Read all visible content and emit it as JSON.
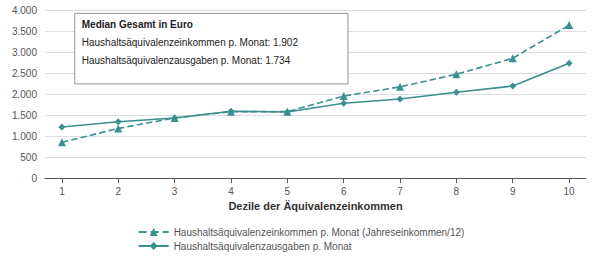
{
  "chart_data": {
    "type": "line",
    "xlabel": "Dezile der Äquivalenzeinkommen",
    "x": [
      1,
      2,
      3,
      4,
      5,
      6,
      7,
      8,
      9,
      10
    ],
    "xlim": [
      0.7,
      10.3
    ],
    "xticks": [
      1,
      2,
      3,
      4,
      5,
      6,
      7,
      8,
      9,
      10
    ],
    "ylim": [
      0,
      4000
    ],
    "yticks": [
      0,
      500,
      {
        "value": 1000,
        "label": "1.000"
      },
      {
        "value": 1500,
        "label": "1.500"
      },
      {
        "value": 2000,
        "label": "2.000"
      },
      {
        "value": 2500,
        "label": "2.500"
      },
      {
        "value": 3000,
        "label": "3.000"
      },
      {
        "value": 3500,
        "label": "3.500"
      },
      {
        "value": 4000,
        "label": "4.000"
      }
    ],
    "grid": true,
    "legend": "bottom",
    "series": [
      {
        "name": "Haushaltsäquivalenzeinkommen p. Monat (Jahreseinkommen/12)",
        "color": "#3a8f8f",
        "marker": "triangle",
        "line_style": "dashed",
        "values": [
          850,
          1180,
          1430,
          1580,
          1580,
          1950,
          2170,
          2470,
          2850,
          3640
        ]
      },
      {
        "name": "Haushaltsäquivalenzausgaben p. Monat",
        "color": "#3a8f8f",
        "marker": "diamond",
        "line_style": "solid",
        "values": [
          1215,
          1340,
          1430,
          1590,
          1570,
          1780,
          1880,
          2040,
          2190,
          2730
        ]
      }
    ],
    "annotations": [
      "Median Gesamt in Euro",
      "Haushaltsäquivalenzeinkommen p. Monat: 1.902",
      "Haushaltsäquivalenzausgaben p. Monat: 1.734"
    ]
  }
}
